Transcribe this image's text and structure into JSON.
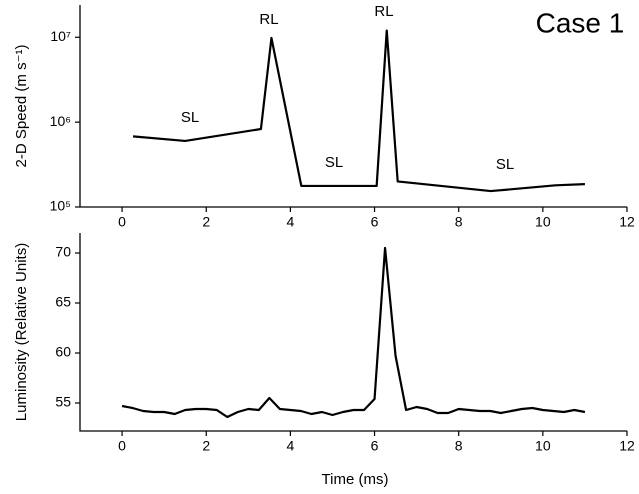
{
  "chart_data": [
    {
      "type": "line",
      "title": "Case 1",
      "ylabel": "2-D Speed (m s⁻¹)",
      "ylog": true,
      "xlim": [
        -1,
        12
      ],
      "xticks": [
        0,
        2,
        4,
        6,
        8,
        10,
        12
      ],
      "ylim": [
        100000,
        24000000
      ],
      "yticks": [
        {
          "value": 100000,
          "label": "10⁵"
        },
        {
          "value": 1000000,
          "label": "10⁶"
        },
        {
          "value": 10000000,
          "label": "10⁷"
        }
      ],
      "series": [
        {
          "color": "#000000",
          "x": [
            0.26,
            1.5,
            3.3,
            3.55,
            4.26,
            6.05,
            6.29,
            6.55,
            8.76,
            10.3,
            11.0
          ],
          "values": [
            680000,
            600000,
            830000,
            9800000,
            177000,
            177000,
            12000000,
            200000,
            154000,
            180000,
            186000
          ]
        }
      ],
      "annotations": [
        {
          "text": "SL"
        },
        {
          "text": "RL"
        },
        {
          "text": "SL"
        },
        {
          "text": "RL"
        },
        {
          "text": "SL"
        }
      ]
    },
    {
      "type": "line",
      "xlabel": "Time (ms)",
      "ylabel": "Luminosity (Relative Units)",
      "ylog": false,
      "xlim": [
        -1,
        12
      ],
      "xticks": [
        0,
        2,
        4,
        6,
        8,
        10,
        12
      ],
      "ylim": [
        52.2,
        72
      ],
      "yticks": [
        55,
        60,
        65,
        70
      ],
      "series": [
        {
          "color": "#000000",
          "x": [
            0,
            0.25,
            0.5,
            0.75,
            1,
            1.25,
            1.5,
            1.75,
            2,
            2.25,
            2.5,
            2.75,
            3,
            3.25,
            3.5,
            3.75,
            4,
            4.25,
            4.5,
            4.75,
            5,
            5.25,
            5.5,
            5.75,
            6,
            6.25,
            6.5,
            6.75,
            7,
            7.25,
            7.5,
            7.75,
            8,
            8.25,
            8.5,
            8.75,
            9,
            9.25,
            9.5,
            9.75,
            10,
            10.25,
            10.5,
            10.75,
            11
          ],
          "values": [
            54.7,
            54.5,
            54.2,
            54.1,
            54.1,
            53.9,
            54.3,
            54.4,
            54.4,
            54.3,
            53.6,
            54.1,
            54.4,
            54.3,
            55.5,
            54.4,
            54.3,
            54.2,
            53.9,
            54.1,
            53.8,
            54.1,
            54.3,
            54.3,
            55.4,
            70.5,
            59.7,
            54.3,
            54.6,
            54.4,
            54.0,
            54.0,
            54.4,
            54.3,
            54.2,
            54.2,
            54.0,
            54.2,
            54.4,
            54.5,
            54.3,
            54.2,
            54.1,
            54.3,
            54.1
          ]
        }
      ]
    }
  ]
}
